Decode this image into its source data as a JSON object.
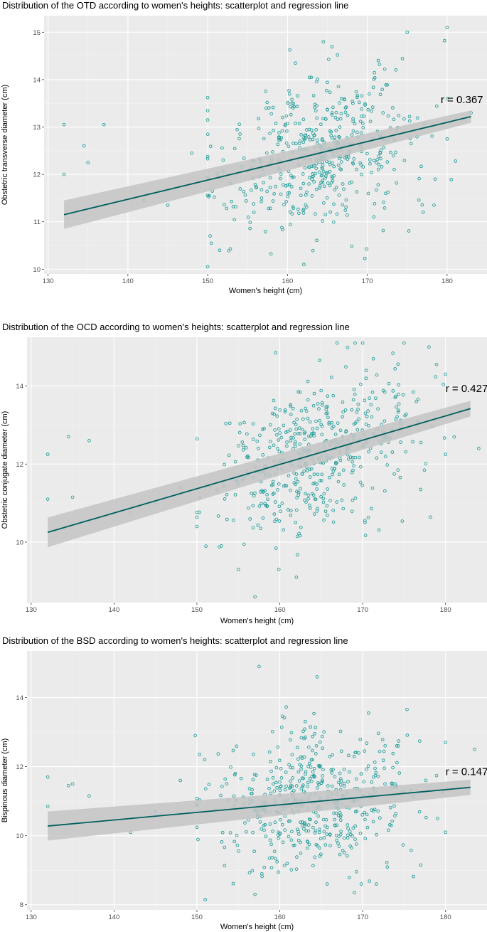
{
  "chart_data": [
    {
      "type": "scatter",
      "title": "Distribution of the OTD according to women's heights: scatterplot and regression line",
      "xlabel": "Women's height (cm)",
      "ylabel": "Obstetric transverse diameter (cm)",
      "xlim": [
        129.5,
        185
      ],
      "ylim": [
        9.9,
        15.35
      ],
      "xticks": [
        130,
        140,
        150,
        160,
        170,
        180
      ],
      "yticks": [
        10,
        11,
        12,
        13,
        14,
        15
      ],
      "regression": {
        "x0": 132,
        "y0": 11.15,
        "x1": 183,
        "y1": 13.22,
        "band_start": 0.3,
        "band_end": 0.13
      },
      "annotation": "r = 0.367",
      "annotation_at": {
        "x": 179.2,
        "y": 13.5
      },
      "outliers": [
        [
          132,
          13.05
        ],
        [
          132,
          12.0
        ],
        [
          134.5,
          12.6
        ],
        [
          135,
          12.25
        ],
        [
          137,
          13.05
        ],
        [
          142,
          11.45
        ],
        [
          145,
          11.35
        ],
        [
          148,
          12.45
        ],
        [
          150,
          10.05
        ],
        [
          150.3,
          10.7
        ],
        [
          151.5,
          10.4
        ],
        [
          175,
          15.0
        ],
        [
          180,
          15.1
        ],
        [
          180,
          12.75
        ],
        [
          183,
          13.3
        ],
        [
          177,
          11.2
        ],
        [
          178.5,
          11.9
        ],
        [
          164.5,
          14.8
        ]
      ],
      "cloud": {
        "n": 500,
        "xmean": 164,
        "xsd": 6,
        "xmin": 150,
        "xmax": 183,
        "slope": 0.0406,
        "intercept": 11.15,
        "x0": 132,
        "sd": 0.82,
        "ymin": 10.1,
        "ymax": 14.95,
        "seed": 17
      }
    },
    {
      "type": "scatter",
      "title": "Distribution of the OCD according to women's heights: scatterplot and regression line",
      "xlabel": "Women's height (cm)",
      "ylabel": "Obstetric conjugate diameter (cm)",
      "xlim": [
        129.5,
        185
      ],
      "ylim": [
        8.45,
        15.25
      ],
      "xticks": [
        130,
        140,
        150,
        160,
        170,
        180
      ],
      "yticks": [
        10,
        12,
        14
      ],
      "regression": {
        "x0": 132,
        "y0": 10.25,
        "x1": 183,
        "y1": 13.42,
        "band_start": 0.38,
        "band_end": 0.2
      },
      "annotation": "r = 0.427",
      "annotation_at": {
        "x": 180,
        "y": 13.85
      },
      "outliers": [
        [
          132,
          12.25
        ],
        [
          132,
          11.1
        ],
        [
          134.5,
          12.7
        ],
        [
          135,
          11.15
        ],
        [
          137,
          12.6
        ],
        [
          142,
          10.75
        ],
        [
          145,
          11.0
        ],
        [
          148,
          11.4
        ],
        [
          150,
          10.4
        ],
        [
          155,
          9.3
        ],
        [
          157,
          8.6
        ],
        [
          162,
          9.1
        ],
        [
          159.5,
          14.85
        ],
        [
          170,
          15.1
        ],
        [
          175,
          15.1
        ],
        [
          178,
          15.0
        ],
        [
          180,
          14.3
        ],
        [
          184,
          12.4
        ],
        [
          180,
          12.25
        ],
        [
          177,
          11.35
        ]
      ],
      "cloud": {
        "n": 500,
        "xmean": 164,
        "xsd": 6,
        "xmin": 150,
        "xmax": 183,
        "slope": 0.0622,
        "intercept": 10.25,
        "x0": 132,
        "sd": 0.95,
        "ymin": 9.3,
        "ymax": 15.1,
        "seed": 29
      }
    },
    {
      "type": "scatter",
      "title": "Distribution of the BSD according to women's heights: scatterplot and regression line",
      "xlabel": "Women's height (cm)",
      "ylabel": "Bispinous diameter (cm)",
      "xlim": [
        129.5,
        185
      ],
      "ylim": [
        7.85,
        15.35
      ],
      "xticks": [
        130,
        140,
        150,
        160,
        170,
        180
      ],
      "yticks": [
        8,
        10,
        12,
        14
      ],
      "regression": {
        "x0": 132,
        "y0": 10.28,
        "x1": 183,
        "y1": 11.4,
        "band_start": 0.42,
        "band_end": 0.22
      },
      "annotation": "r = 0.147",
      "annotation_at": {
        "x": 180,
        "y": 11.75
      },
      "outliers": [
        [
          132,
          11.7
        ],
        [
          132,
          10.85
        ],
        [
          134.5,
          11.45
        ],
        [
          135,
          11.5
        ],
        [
          137,
          11.15
        ],
        [
          142,
          10.1
        ],
        [
          145,
          10.7
        ],
        [
          148,
          11.6
        ],
        [
          149.8,
          12.9
        ],
        [
          151,
          8.15
        ],
        [
          157,
          8.3
        ],
        [
          157.5,
          14.9
        ],
        [
          164.5,
          14.6
        ],
        [
          169,
          8.35
        ],
        [
          180,
          12.7
        ],
        [
          183.5,
          12.5
        ],
        [
          180,
          10.1
        ],
        [
          177,
          9.15
        ]
      ],
      "cloud": {
        "n": 500,
        "xmean": 164,
        "xsd": 6,
        "xmin": 150,
        "xmax": 183,
        "slope": 0.022,
        "intercept": 10.28,
        "x0": 132,
        "sd": 1.05,
        "ymin": 8.6,
        "ymax": 14.6,
        "seed": 41
      }
    }
  ],
  "colors": {
    "panel": "#ebebeb",
    "grid_major": "#ffffff",
    "grid_minor": "#f4f4f4",
    "point": "#1a9a96",
    "line": "#005f5f",
    "band": "#c4c4c4",
    "tick_text": "#4d4d4d"
  }
}
